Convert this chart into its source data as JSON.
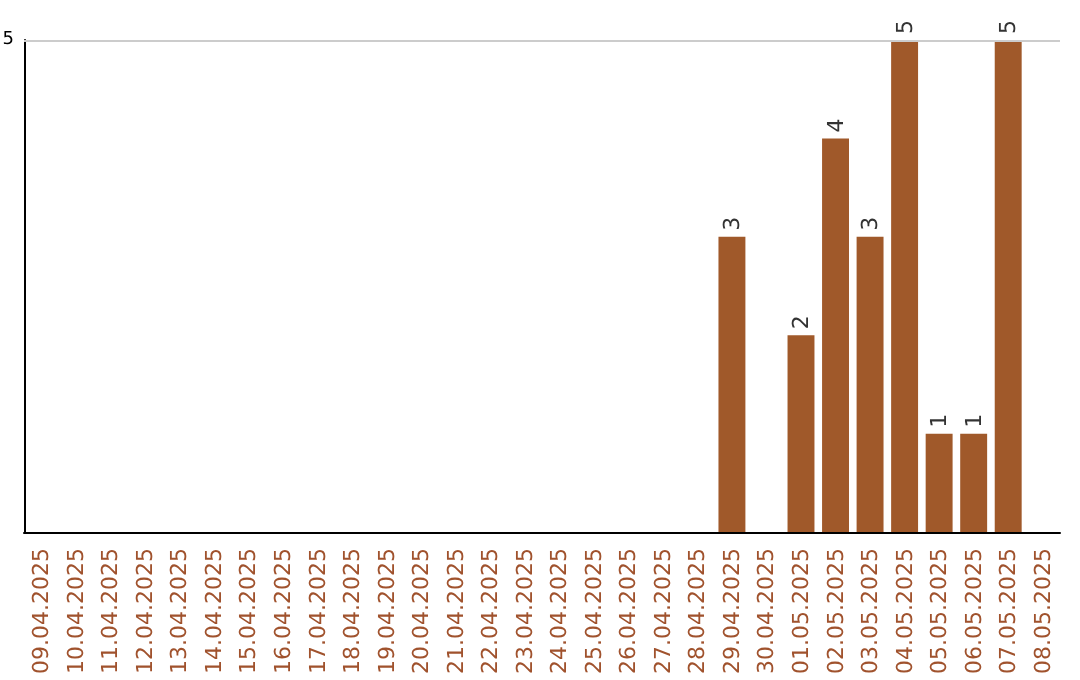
{
  "chart_data": {
    "type": "bar",
    "categories": [
      "09.04.2025",
      "10.04.2025",
      "11.04.2025",
      "12.04.2025",
      "13.04.2025",
      "14.04.2025",
      "15.04.2025",
      "16.04.2025",
      "17.04.2025",
      "18.04.2025",
      "19.04.2025",
      "20.04.2025",
      "21.04.2025",
      "22.04.2025",
      "23.04.2025",
      "24.04.2025",
      "25.04.2025",
      "26.04.2025",
      "27.04.2025",
      "28.04.2025",
      "29.04.2025",
      "30.04.2025",
      "01.05.2025",
      "02.05.2025",
      "03.05.2025",
      "04.05.2025",
      "05.05.2025",
      "06.05.2025",
      "07.05.2025",
      "08.05.2025"
    ],
    "values": [
      null,
      null,
      null,
      null,
      null,
      null,
      null,
      null,
      null,
      null,
      null,
      null,
      null,
      null,
      null,
      null,
      null,
      null,
      null,
      null,
      3,
      null,
      2,
      4,
      3,
      5,
      1,
      1,
      5,
      null
    ],
    "data_labels": true,
    "color": "#a0592a",
    "ylim": [
      0,
      5
    ],
    "ref_lines": [
      {
        "axis": "y",
        "value": 5,
        "label": "5",
        "color": "#cccccc"
      }
    ]
  }
}
